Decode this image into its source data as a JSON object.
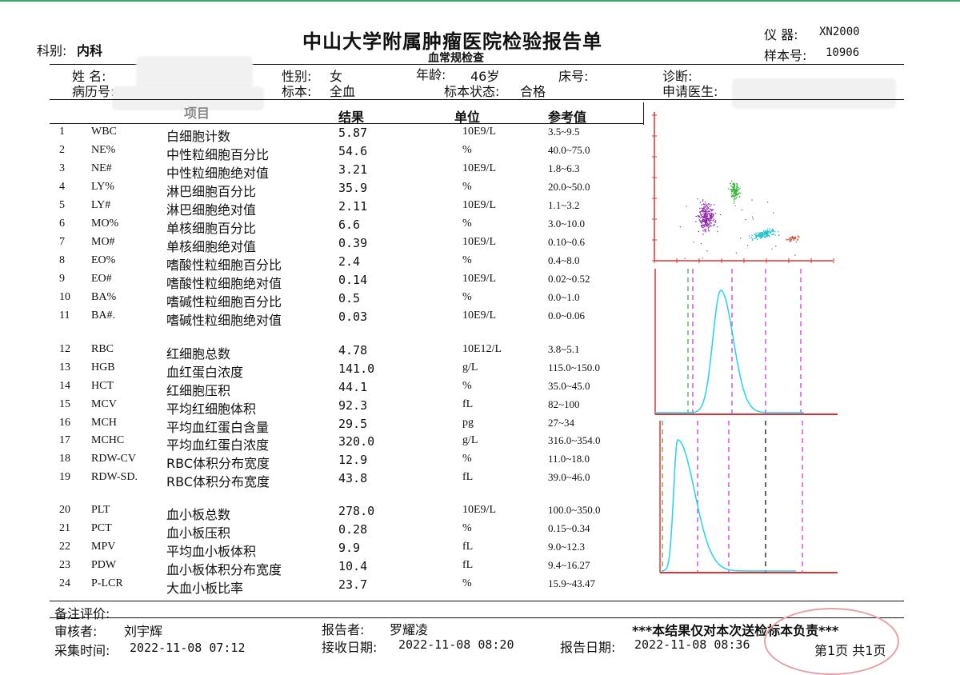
{
  "header": {
    "title": "中山大学附属肿瘤医院检验报告单",
    "subtitle": "血常规检查",
    "dept_label": "科别:",
    "dept_value": "内科",
    "instrument_label": "仪  器:",
    "instrument_value": "XN2000",
    "sample_label": "样本号:",
    "sample_value": "10906"
  },
  "patient": {
    "name_label": "姓  名:",
    "record_label": "病历号:",
    "sex_label": "性别:",
    "sex_value": "女",
    "specimen_label": "标本:",
    "specimen_value": "全血",
    "age_label": "年龄:",
    "age_value": "46岁",
    "status_label": "标本状态:",
    "status_value": "合格",
    "bed_label": "床号:",
    "diag_label": "诊断:",
    "doctor_label": "申请医生:"
  },
  "columns": {
    "item": "项目",
    "result": "结果",
    "unit": "单位",
    "ref": "参考值"
  },
  "rows": [
    {
      "no": "1",
      "code": "WBC",
      "name": "白细胞计数",
      "value": "5.87",
      "unit": "10E9/L",
      "ref": "3.5~9.5"
    },
    {
      "no": "2",
      "code": "NE%",
      "name": "中性粒细胞百分比",
      "value": "54.6",
      "unit": "%",
      "ref": "40.0~75.0"
    },
    {
      "no": "3",
      "code": "NE#",
      "name": "中性粒细胞绝对值",
      "value": "3.21",
      "unit": "10E9/L",
      "ref": "1.8~6.3"
    },
    {
      "no": "4",
      "code": "LY%",
      "name": "淋巴细胞百分比",
      "value": "35.9",
      "unit": "%",
      "ref": "20.0~50.0"
    },
    {
      "no": "5",
      "code": "LY#",
      "name": "淋巴细胞绝对值",
      "value": "2.11",
      "unit": "10E9/L",
      "ref": "1.1~3.2"
    },
    {
      "no": "6",
      "code": "MO%",
      "name": "单核细胞百分比",
      "value": "6.6",
      "unit": "%",
      "ref": "3.0~10.0"
    },
    {
      "no": "7",
      "code": "MO#",
      "name": "单核细胞绝对值",
      "value": "0.39",
      "unit": "10E9/L",
      "ref": "0.10~0.6"
    },
    {
      "no": "8",
      "code": "EO%",
      "name": "嗜酸性粒细胞百分比",
      "value": "2.4",
      "unit": "%",
      "ref": "0.4~8.0"
    },
    {
      "no": "9",
      "code": "EO#",
      "name": "嗜酸性粒细胞绝对值",
      "value": "0.14",
      "unit": "10E9/L",
      "ref": "0.02~0.52"
    },
    {
      "no": "10",
      "code": "BA%",
      "name": "嗜碱性粒细胞百分比",
      "value": "0.5",
      "unit": "%",
      "ref": "0.0~1.0"
    },
    {
      "no": "11",
      "code": "BA#.",
      "name": "嗜碱性粒细胞绝对值",
      "value": "0.03",
      "unit": "10E9/L",
      "ref": "0.0~0.06"
    },
    {
      "no": "12",
      "code": "RBC",
      "name": "红细胞总数",
      "value": "4.78",
      "unit": "10E12/L",
      "ref": "3.8~5.1"
    },
    {
      "no": "13",
      "code": "HGB",
      "name": "血红蛋白浓度",
      "value": "141.0",
      "unit": "g/L",
      "ref": "115.0~150.0"
    },
    {
      "no": "14",
      "code": "HCT",
      "name": "红细胞压积",
      "value": "44.1",
      "unit": "%",
      "ref": "35.0~45.0"
    },
    {
      "no": "15",
      "code": "MCV",
      "name": "平均红细胞体积",
      "value": "92.3",
      "unit": "fL",
      "ref": "82~100"
    },
    {
      "no": "16",
      "code": "MCH",
      "name": "平均血红蛋白含量",
      "value": "29.5",
      "unit": "pg",
      "ref": "27~34"
    },
    {
      "no": "17",
      "code": "MCHC",
      "name": "平均血红蛋白浓度",
      "value": "320.0",
      "unit": "g/L",
      "ref": "316.0~354.0"
    },
    {
      "no": "18",
      "code": "RDW-CV",
      "name": "RBC体积分布宽度",
      "value": "12.9",
      "unit": "%",
      "ref": "11.0~18.0"
    },
    {
      "no": "19",
      "code": "RDW-SD.",
      "name": "RBC体积分布宽度",
      "value": "43.8",
      "unit": "fL",
      "ref": "39.0~46.0"
    },
    {
      "no": "20",
      "code": "PLT",
      "name": "血小板总数",
      "value": "278.0",
      "unit": "10E9/L",
      "ref": "100.0~350.0"
    },
    {
      "no": "21",
      "code": "PCT",
      "name": "血小板压积",
      "value": "0.28",
      "unit": "%",
      "ref": "0.15~0.34"
    },
    {
      "no": "22",
      "code": "MPV",
      "name": "平均血小板体积",
      "value": "9.9",
      "unit": "fL",
      "ref": "9.0~12.3"
    },
    {
      "no": "23",
      "code": "PDW",
      "name": "血小板体积分布宽度",
      "value": "10.4",
      "unit": "fL",
      "ref": "9.4~16.27"
    },
    {
      "no": "24",
      "code": "P-LCR",
      "name": "大血小板比率",
      "value": "23.7",
      "unit": "%",
      "ref": "15.9~43.47"
    }
  ],
  "footer": {
    "remark_label": "备注评价:",
    "reviewer_label": "审核者:",
    "reviewer_value": "刘宇辉",
    "reporter_label": "报告者:",
    "reporter_value": "罗耀凌",
    "disclaimer": "***本结果仅对本次送检标本负责***",
    "collect_label": "采集时间:",
    "collect_value": "2022-11-08 07:12",
    "receive_label": "接收日期:",
    "receive_value": "2022-11-08 08:20",
    "report_label": "报告日期:",
    "report_value": "2022-11-08 08:36",
    "page_info": "第1页 共1页"
  },
  "colors": {
    "scatter_ly": "#8b1fa8",
    "scatter_ne": "#3db33d",
    "scatter_mo": "#1fc0c8",
    "scatter_eo": "#c8553d",
    "curve": "#22d3ee",
    "axis_red": "#d33",
    "marker_magenta": "#d04bd0",
    "marker_green": "#4bb84b"
  }
}
